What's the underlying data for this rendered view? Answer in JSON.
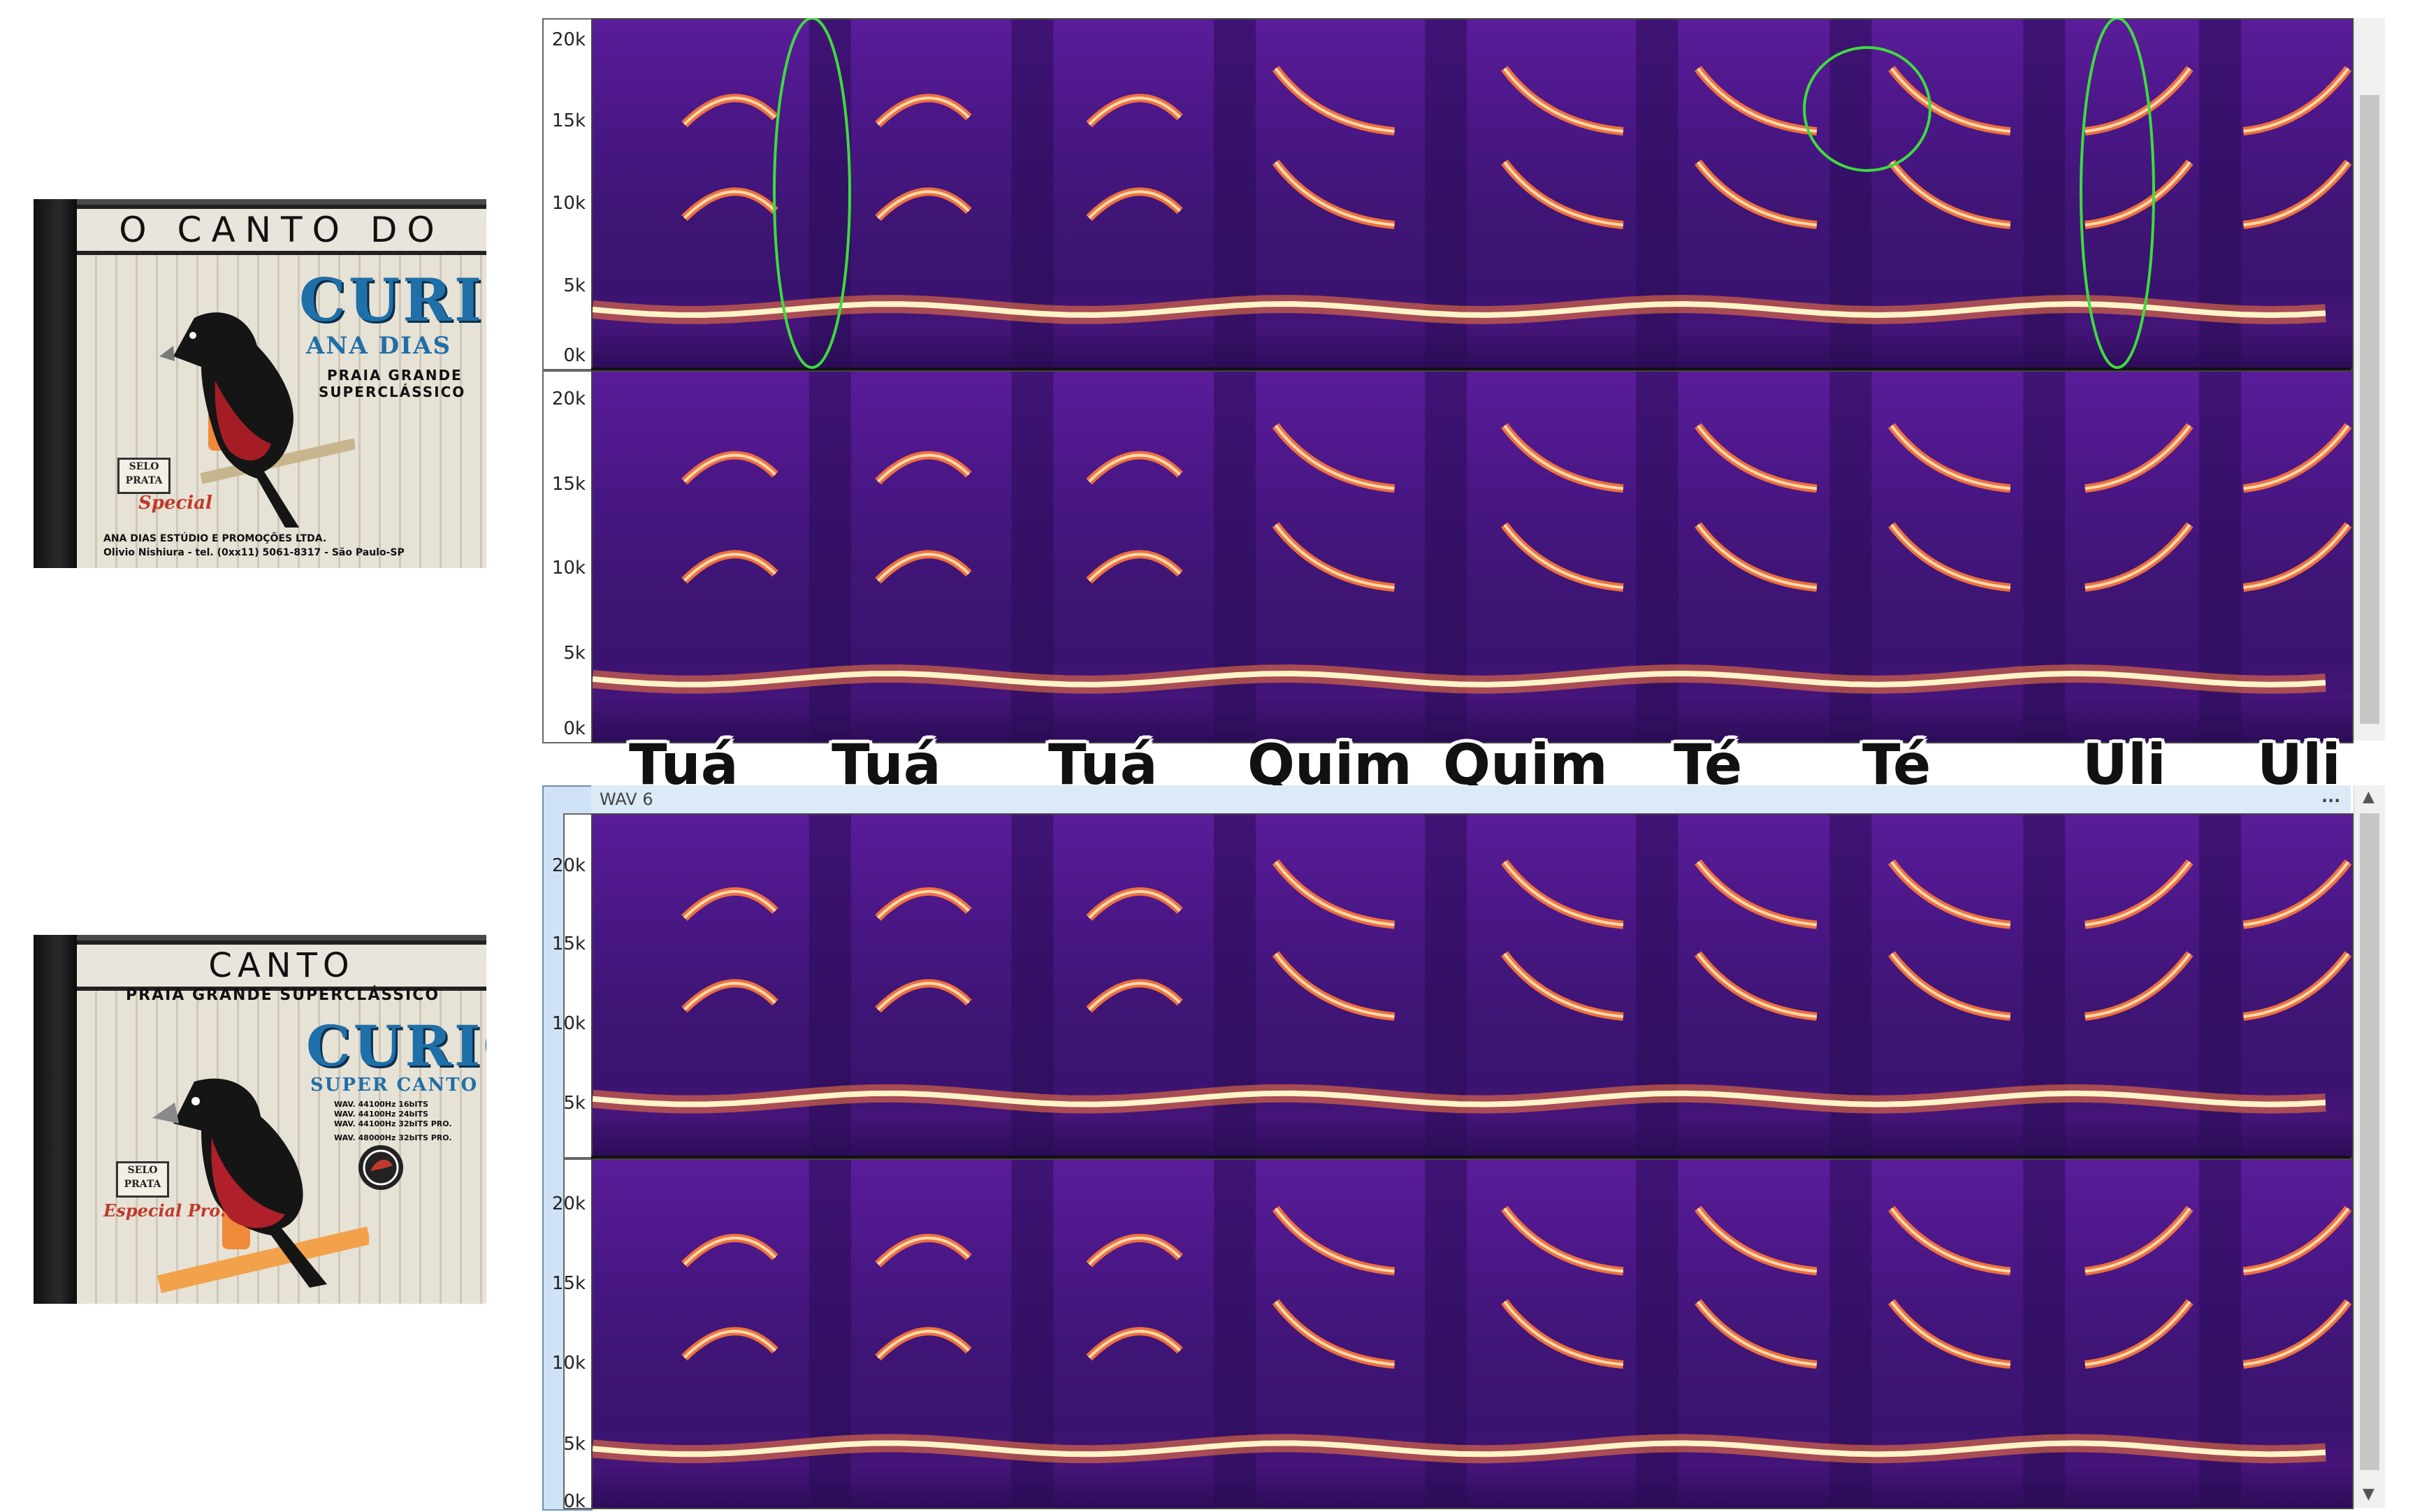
{
  "cd_top": {
    "header": "O CANTO DO",
    "title": "CURIÓ",
    "artist": "ANA DIAS",
    "subtitle_line1": "PRAIA GRANDE",
    "subtitle_line2": "SUPERCLÁSSICO",
    "seal_line1": "SELO",
    "seal_line2": "PRATA",
    "seal_script": "Special",
    "footer_line1": "ANA DIAS ESTÚDIO E PROMOÇÕES LTDA.",
    "footer_line2": "Olivio Nishiura - tel. (0xx11) 5061-8317 - São Paulo-SP"
  },
  "cd_bottom": {
    "header": "CANTO",
    "subheader": "PRAIA  GRANDE SUPERCLÁSSICO",
    "title": "CURIÓ",
    "subtitle": "SUPER CANTO",
    "spec_line1": "WAV. 44100Hz 16bITS",
    "spec_line2": "WAV. 44100Hz 24bITS",
    "spec_line3": "WAV. 44100Hz 32bITS PRO.",
    "spec_line4": "WAV. 48000Hz 32bITS PRO.",
    "seal_line1": "SELO",
    "seal_line2": "PRATA",
    "seal_script": "Especial Pro."
  },
  "axis_ticks": [
    "20k",
    "15k",
    "10k",
    "5k",
    "0k"
  ],
  "syllables": [
    "Tuá",
    "Tuá",
    "Tuá",
    "Quim",
    "Quim",
    "Té",
    "Té",
    "Uli",
    "Uli"
  ],
  "track_label": "WAV 6",
  "track_menu": "...",
  "colors": {
    "spectro_bg": "#4a1786",
    "harmonic": "#ff7a3a",
    "fundamental": "#fff4c8",
    "highlight": "#3ddc3d"
  }
}
